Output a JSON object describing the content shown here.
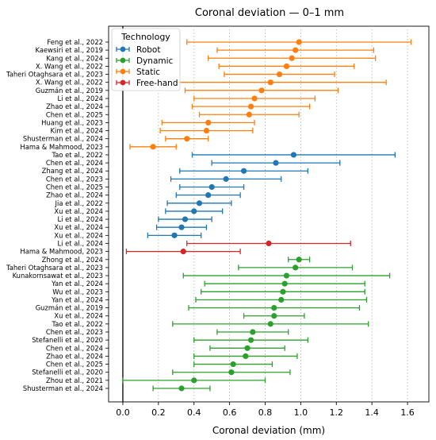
{
  "chart_data": {
    "type": "scatter",
    "title": "Coronal deviation — 0–1 mm",
    "xlabel": "Coronal deviation (mm)",
    "ylabel": "",
    "xlim": [
      -0.08,
      1.72
    ],
    "xticks": [
      "0.0",
      "0.2",
      "0.4",
      "0.6",
      "0.8",
      "1.0",
      "1.2",
      "1.4",
      "1.6"
    ],
    "grid": "vertical, dotted",
    "reference_line_x": 0,
    "legend": {
      "title": "Technology",
      "placement": "top-left",
      "entries": [
        {
          "name": "Robot",
          "color": "#1f77b4"
        },
        {
          "name": "Dynamic",
          "color": "#2ca02c"
        },
        {
          "name": "Static",
          "color": "#ff7f0e"
        },
        {
          "name": "Free-hand",
          "color": "#d62728"
        }
      ]
    },
    "rows": [
      {
        "study": "Feng et al., 2022",
        "group": "Static",
        "color": "#ff7f0e",
        "mean": 0.99,
        "low": 0.36,
        "high": 1.62
      },
      {
        "study": "Kaewsiri et al., 2019",
        "group": "Static",
        "color": "#ff7f0e",
        "mean": 0.97,
        "low": 0.53,
        "high": 1.41
      },
      {
        "study": "Kang et al., 2024",
        "group": "Static",
        "color": "#ff7f0e",
        "mean": 0.95,
        "low": 0.48,
        "high": 1.42
      },
      {
        "study": "X. Wang et al., 2022",
        "group": "Static",
        "color": "#ff7f0e",
        "mean": 0.92,
        "low": 0.54,
        "high": 1.3
      },
      {
        "study": "Taheri Otaghsara et al., 2023",
        "group": "Static",
        "color": "#ff7f0e",
        "mean": 0.88,
        "low": 0.57,
        "high": 1.19
      },
      {
        "study": "X. Wang et al., 2022",
        "group": "Static",
        "color": "#ff7f0e",
        "mean": 0.83,
        "low": 0.3,
        "high": 1.48
      },
      {
        "study": "Guzmán et al., 2019",
        "group": "Static",
        "color": "#ff7f0e",
        "mean": 0.78,
        "low": 0.35,
        "high": 1.21
      },
      {
        "study": "Li et al., 2024",
        "group": "Static",
        "color": "#ff7f0e",
        "mean": 0.74,
        "low": 0.4,
        "high": 1.08
      },
      {
        "study": "Zhao et al., 2024",
        "group": "Static",
        "color": "#ff7f0e",
        "mean": 0.72,
        "low": 0.39,
        "high": 1.05
      },
      {
        "study": "Chen et al., 2025",
        "group": "Static",
        "color": "#ff7f0e",
        "mean": 0.71,
        "low": 0.43,
        "high": 0.99
      },
      {
        "study": "Huang et al., 2023",
        "group": "Static",
        "color": "#ff7f0e",
        "mean": 0.48,
        "low": 0.22,
        "high": 0.74
      },
      {
        "study": "Kim et al., 2024",
        "group": "Static",
        "color": "#ff7f0e",
        "mean": 0.47,
        "low": 0.21,
        "high": 0.73
      },
      {
        "study": "Shusterman et al., 2024",
        "group": "Static",
        "color": "#ff7f0e",
        "mean": 0.36,
        "low": 0.24,
        "high": 0.48
      },
      {
        "study": "Hama & Mahmood, 2023",
        "group": "Static",
        "color": "#ff7f0e",
        "mean": 0.17,
        "low": 0.04,
        "high": 0.3
      },
      {
        "study": "Tao et al., 2022",
        "group": "Robot",
        "color": "#1f77b4",
        "mean": 0.96,
        "low": 0.39,
        "high": 1.53
      },
      {
        "study": "Chen et al., 2024",
        "group": "Robot",
        "color": "#1f77b4",
        "mean": 0.86,
        "low": 0.5,
        "high": 1.22
      },
      {
        "study": "Zhang et al., 2024",
        "group": "Robot",
        "color": "#1f77b4",
        "mean": 0.68,
        "low": 0.32,
        "high": 1.04
      },
      {
        "study": "Chen et al., 2023",
        "group": "Robot",
        "color": "#1f77b4",
        "mean": 0.58,
        "low": 0.27,
        "high": 0.89
      },
      {
        "study": "Chen et al., 2025",
        "group": "Robot",
        "color": "#1f77b4",
        "mean": 0.5,
        "low": 0.32,
        "high": 0.68
      },
      {
        "study": "Zhao et al., 2024",
        "group": "Robot",
        "color": "#1f77b4",
        "mean": 0.48,
        "low": 0.3,
        "high": 0.66
      },
      {
        "study": "Jia et al., 2022",
        "group": "Robot",
        "color": "#1f77b4",
        "mean": 0.43,
        "low": 0.25,
        "high": 0.61
      },
      {
        "study": "Xu et al., 2024",
        "group": "Robot",
        "color": "#1f77b4",
        "mean": 0.4,
        "low": 0.24,
        "high": 0.56
      },
      {
        "study": "Li et al., 2024",
        "group": "Robot",
        "color": "#1f77b4",
        "mean": 0.35,
        "low": 0.2,
        "high": 0.5
      },
      {
        "study": "Xu et al., 2024",
        "group": "Robot",
        "color": "#1f77b4",
        "mean": 0.33,
        "low": 0.19,
        "high": 0.47
      },
      {
        "study": "Xu et al., 2024",
        "group": "Robot",
        "color": "#1f77b4",
        "mean": 0.29,
        "low": 0.14,
        "high": 0.44
      },
      {
        "study": "Li et al., 2024",
        "group": "Free-hand",
        "color": "#d62728",
        "mean": 0.82,
        "low": 0.36,
        "high": 1.28
      },
      {
        "study": "Hama & Mahmood, 2023",
        "group": "Free-hand",
        "color": "#d62728",
        "mean": 0.34,
        "low": 0.02,
        "high": 0.66
      },
      {
        "study": "Zhong et al., 2024",
        "group": "Dynamic",
        "color": "#2ca02c",
        "mean": 0.99,
        "low": 0.93,
        "high": 1.05
      },
      {
        "study": "Taheri Otaghsara et al., 2023",
        "group": "Dynamic",
        "color": "#2ca02c",
        "mean": 0.97,
        "low": 0.65,
        "high": 1.29
      },
      {
        "study": "Kunakornsawat et al., 2023",
        "group": "Dynamic",
        "color": "#2ca02c",
        "mean": 0.92,
        "low": 0.34,
        "high": 1.5
      },
      {
        "study": "Yan et al., 2024",
        "group": "Dynamic",
        "color": "#2ca02c",
        "mean": 0.91,
        "low": 0.46,
        "high": 1.36
      },
      {
        "study": "Wu et al., 2023",
        "group": "Dynamic",
        "color": "#2ca02c",
        "mean": 0.9,
        "low": 0.44,
        "high": 1.36
      },
      {
        "study": "Yan et al., 2024",
        "group": "Dynamic",
        "color": "#2ca02c",
        "mean": 0.89,
        "low": 0.41,
        "high": 1.37
      },
      {
        "study": "Guzmán et al., 2019",
        "group": "Dynamic",
        "color": "#2ca02c",
        "mean": 0.85,
        "low": 0.37,
        "high": 1.33
      },
      {
        "study": "Xu et al., 2024",
        "group": "Dynamic",
        "color": "#2ca02c",
        "mean": 0.85,
        "low": 0.68,
        "high": 1.02
      },
      {
        "study": "Tao et al., 2022",
        "group": "Dynamic",
        "color": "#2ca02c",
        "mean": 0.83,
        "low": 0.28,
        "high": 1.38
      },
      {
        "study": "Chen et al., 2023",
        "group": "Dynamic",
        "color": "#2ca02c",
        "mean": 0.73,
        "low": 0.53,
        "high": 0.93
      },
      {
        "study": "Stefanelli et al., 2020",
        "group": "Dynamic",
        "color": "#2ca02c",
        "mean": 0.72,
        "low": 0.4,
        "high": 1.04
      },
      {
        "study": "Chen et al., 2024",
        "group": "Dynamic",
        "color": "#2ca02c",
        "mean": 0.7,
        "low": 0.49,
        "high": 0.91
      },
      {
        "study": "Zhao et al., 2024",
        "group": "Dynamic",
        "color": "#2ca02c",
        "mean": 0.69,
        "low": 0.4,
        "high": 0.98
      },
      {
        "study": "Chen et al., 2025",
        "group": "Dynamic",
        "color": "#2ca02c",
        "mean": 0.62,
        "low": 0.4,
        "high": 0.84
      },
      {
        "study": "Stefanelli et al., 2020",
        "group": "Dynamic",
        "color": "#2ca02c",
        "mean": 0.61,
        "low": 0.28,
        "high": 0.94
      },
      {
        "study": "Zhou et al., 2021",
        "group": "Dynamic",
        "color": "#2ca02c",
        "mean": 0.4,
        "low": 0.0,
        "high": 0.8
      },
      {
        "study": "Shusterman et al., 2024",
        "group": "Dynamic",
        "color": "#2ca02c",
        "mean": 0.33,
        "low": 0.17,
        "high": 0.49
      }
    ]
  }
}
